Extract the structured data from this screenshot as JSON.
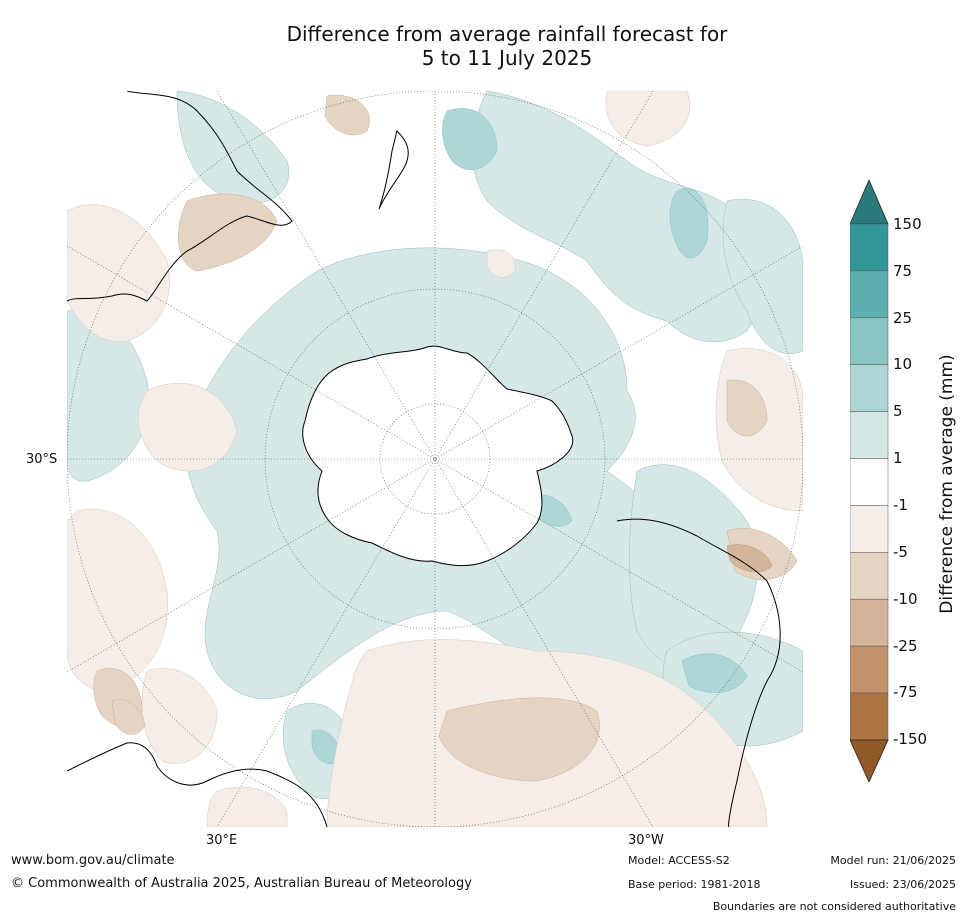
{
  "title_line1": "Difference from average rainfall forecast for",
  "title_line2": "5 to 11 July 2025",
  "axis": {
    "lat_label": "30°S",
    "lon_east_label": "30°E",
    "lon_west_label": "30°W"
  },
  "colorbar": {
    "title": "Difference from average (mm)",
    "levels": [
      "150",
      "75",
      "25",
      "10",
      "5",
      "1",
      "-1",
      "-5",
      "-10",
      "-25",
      "-75",
      "-150"
    ],
    "colors": [
      "#2a7b7b",
      "#33979a",
      "#5faeae",
      "#87c4c2",
      "#add6d5",
      "#d5e8e7",
      "#ffffff",
      "#f4ede8",
      "#e6d4c3",
      "#d4b59a",
      "#c2936b",
      "#ad7444",
      "#8f5a28"
    ]
  },
  "footer": {
    "url": "www.bom.gov.au/climate",
    "copyright": "© Commonwealth of Australia 2025, Australian Bureau of Meteorology",
    "model": "Model: ACCESS-S2",
    "base_period": "Base period: 1981-2018",
    "model_run": "Model run: 21/06/2025",
    "issued": "Issued: 23/06/2025",
    "disclaimer": "Boundaries are not considered authoritative"
  }
}
